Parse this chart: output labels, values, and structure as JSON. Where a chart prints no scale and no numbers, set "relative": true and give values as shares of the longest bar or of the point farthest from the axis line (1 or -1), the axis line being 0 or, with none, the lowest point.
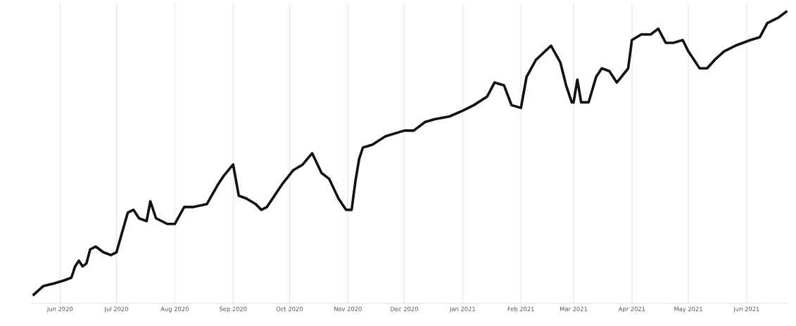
{
  "chart_data": {
    "type": "line",
    "relative": true,
    "grid": "x",
    "line_style": "solid",
    "marker": "none",
    "xlim": [
      "2020-05-17",
      "2021-06-23"
    ],
    "xticks": [
      {
        "value": "2020-06-01",
        "label": "Jun 2020"
      },
      {
        "value": "2020-07-01",
        "label": "Jul 2020"
      },
      {
        "value": "2020-08-01",
        "label": "Aug 2020"
      },
      {
        "value": "2020-09-01",
        "label": "Sep 2020"
      },
      {
        "value": "2020-10-01",
        "label": "Oct 2020"
      },
      {
        "value": "2020-11-01",
        "label": "Nov 2020"
      },
      {
        "value": "2020-12-01",
        "label": "Dec 2020"
      },
      {
        "value": "2021-01-01",
        "label": "Jan 2021"
      },
      {
        "value": "2021-02-01",
        "label": "Feb 2021"
      },
      {
        "value": "2021-03-01",
        "label": "Mar 2021"
      },
      {
        "value": "2021-04-01",
        "label": "Apr 2021"
      },
      {
        "value": "2021-05-01",
        "label": "May 2021"
      },
      {
        "value": "2021-06-01",
        "label": "Jun 2021"
      }
    ],
    "x": [
      "2020-05-18",
      "2020-05-23",
      "2020-05-29",
      "2020-06-03",
      "2020-06-07",
      "2020-06-09",
      "2020-06-11",
      "2020-06-13",
      "2020-06-15",
      "2020-06-17",
      "2020-06-20",
      "2020-06-24",
      "2020-06-28",
      "2020-07-01",
      "2020-07-04",
      "2020-07-07",
      "2020-07-10",
      "2020-07-13",
      "2020-07-17",
      "2020-07-19",
      "2020-07-22",
      "2020-07-28",
      "2020-08-01",
      "2020-08-06",
      "2020-08-11",
      "2020-08-18",
      "2020-08-24",
      "2020-08-27",
      "2020-09-01",
      "2020-09-04",
      "2020-09-08",
      "2020-09-13",
      "2020-09-16",
      "2020-09-19",
      "2020-09-23",
      "2020-09-27",
      "2020-10-03",
      "2020-10-08",
      "2020-10-13",
      "2020-10-18",
      "2020-10-22",
      "2020-10-27",
      "2020-10-31",
      "2020-11-03",
      "2020-11-05",
      "2020-11-07",
      "2020-11-09",
      "2020-11-14",
      "2020-11-21",
      "2020-12-01",
      "2020-12-06",
      "2020-12-12",
      "2020-12-17",
      "2020-12-25",
      "2021-01-01",
      "2021-01-07",
      "2021-01-14",
      "2021-01-18",
      "2021-01-23",
      "2021-01-27",
      "2021-02-01",
      "2021-02-04",
      "2021-02-09",
      "2021-02-17",
      "2021-02-22",
      "2021-02-25",
      "2021-02-28",
      "2021-03-01",
      "2021-03-03",
      "2021-03-05",
      "2021-03-09",
      "2021-03-13",
      "2021-03-16",
      "2021-03-20",
      "2021-03-24",
      "2021-03-30",
      "2021-04-01",
      "2021-04-06",
      "2021-04-11",
      "2021-04-15",
      "2021-04-19",
      "2021-04-23",
      "2021-04-28",
      "2021-05-01",
      "2021-05-07",
      "2021-05-11",
      "2021-05-15",
      "2021-05-20",
      "2021-05-26",
      "2021-06-03",
      "2021-06-08",
      "2021-06-12",
      "2021-06-18",
      "2021-06-22"
    ],
    "series": [
      {
        "color": "#111111",
        "values": [
          0.0,
          0.03,
          0.04,
          0.05,
          0.06,
          0.1,
          0.12,
          0.1,
          0.11,
          0.16,
          0.17,
          0.15,
          0.14,
          0.15,
          0.22,
          0.29,
          0.3,
          0.27,
          0.26,
          0.33,
          0.27,
          0.25,
          0.25,
          0.31,
          0.31,
          0.32,
          0.39,
          0.42,
          0.46,
          0.35,
          0.34,
          0.32,
          0.3,
          0.31,
          0.35,
          0.39,
          0.44,
          0.46,
          0.5,
          0.43,
          0.41,
          0.34,
          0.3,
          0.3,
          0.4,
          0.48,
          0.52,
          0.53,
          0.56,
          0.58,
          0.58,
          0.61,
          0.62,
          0.63,
          0.65,
          0.67,
          0.7,
          0.75,
          0.74,
          0.67,
          0.66,
          0.77,
          0.83,
          0.88,
          0.82,
          0.74,
          0.68,
          0.68,
          0.76,
          0.68,
          0.68,
          0.77,
          0.8,
          0.79,
          0.75,
          0.8,
          0.9,
          0.92,
          0.92,
          0.94,
          0.89,
          0.89,
          0.9,
          0.86,
          0.8,
          0.8,
          0.83,
          0.86,
          0.88,
          0.9,
          0.91,
          0.96,
          0.98,
          1.0
        ]
      }
    ]
  }
}
